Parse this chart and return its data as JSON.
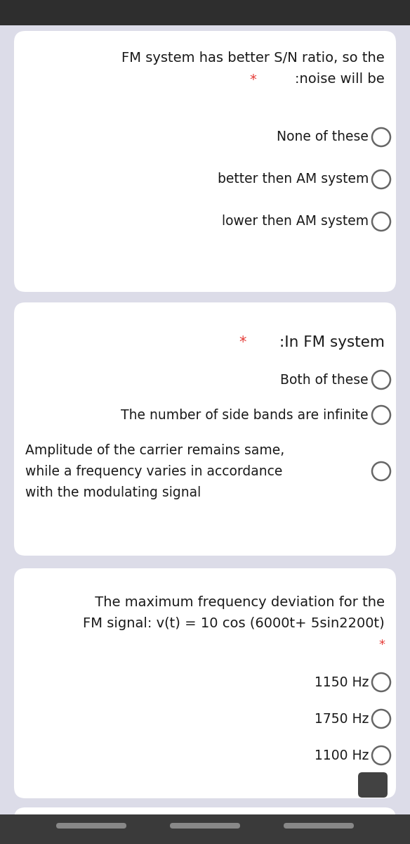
{
  "bg_color": "#dcdce8",
  "card_color": "#ffffff",
  "text_color": "#1a1a1a",
  "red_color": "#e53935",
  "circle_edge_color": "#666666",
  "statusbar_color": "#2e2e2e",
  "bottom_bar_color": "#3a3a3a",
  "q1_title_line1": "FM system has better S/N ratio, so the",
  "q1_title_line2_star": "* ",
  "q1_title_line2_text": ":noise will be",
  "q1_options": [
    "None of these",
    "better then AM system",
    "lower then AM system"
  ],
  "q2_title_star": "* ",
  "q2_title_text": ":In FM system",
  "q2_options": [
    "Both of these",
    "The number of side bands are infinite",
    "Amplitude of the carrier remains same,\nwhile a frequency varies in accordance\nwith the modulating signal"
  ],
  "q3_title_line1": " The maximum frequency deviation for the",
  "q3_title_line2": "FM signal: v(t) = 10 cos (6000t+ 5sin2200t)",
  "q3_star": "*",
  "q3_options": [
    "1150 Hz",
    "1750 Hz",
    "1100 Hz"
  ],
  "font_size_title": 14,
  "font_size_option": 13.5,
  "circle_r": 0.0155
}
